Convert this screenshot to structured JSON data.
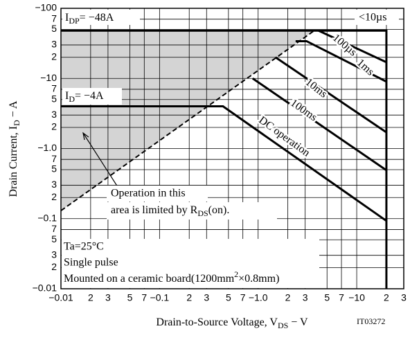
{
  "chart_data": {
    "type": "line",
    "x_scale": "log",
    "y_scale": "log",
    "grid": true,
    "color": "#000000",
    "shade_color": "#d4d4d4",
    "xlim": [
      0.01,
      30
    ],
    "ylim": [
      0.01,
      100
    ],
    "xticks": [
      {
        "value": 0.01,
        "label": "−0.01"
      },
      {
        "value": 0.02,
        "label": "2"
      },
      {
        "value": 0.03,
        "label": "3"
      },
      {
        "value": 0.05,
        "label": "5"
      },
      {
        "value": 0.07,
        "label": "7"
      },
      {
        "value": 0.1,
        "label": "−0.1"
      },
      {
        "value": 0.2,
        "label": "2"
      },
      {
        "value": 0.3,
        "label": "3"
      },
      {
        "value": 0.5,
        "label": "5"
      },
      {
        "value": 0.7,
        "label": "7"
      },
      {
        "value": 1,
        "label": "−1.0"
      },
      2,
      3,
      5,
      7,
      {
        "value": 10,
        "label": "−10"
      },
      {
        "value": 20,
        "label": "2"
      },
      {
        "value": 30,
        "label": "3"
      }
    ],
    "yticks": [
      {
        "value": 0.01,
        "label": "−0.01"
      },
      {
        "value": 0.02,
        "label": "2"
      },
      {
        "value": 0.03,
        "label": "3"
      },
      {
        "value": 0.05,
        "label": "5"
      },
      {
        "value": 0.07,
        "label": "7"
      },
      {
        "value": 0.1,
        "label": "−0.1"
      },
      {
        "value": 0.2,
        "label": "2"
      },
      {
        "value": 0.3,
        "label": "3"
      },
      {
        "value": 0.5,
        "label": "5"
      },
      {
        "value": 0.7,
        "label": "7"
      },
      {
        "value": 1,
        "label": "−1.0"
      },
      2,
      3,
      5,
      7,
      {
        "value": 10,
        "label": "−10"
      },
      {
        "value": 20,
        "label": "2"
      },
      {
        "value": 30,
        "label": "3"
      },
      {
        "value": 50,
        "label": "5"
      },
      {
        "value": 70,
        "label": "7"
      },
      {
        "value": 100,
        "label": "−100"
      }
    ],
    "x_label": {
      "text": "Drain-to-Source Voltage, V",
      "sub": "DS",
      "tail": " − V"
    },
    "y_label": {
      "text": "Drain Current, I",
      "sub": "D",
      "tail": " − A"
    },
    "series": [
      {
        "name": "<10µs",
        "x": [
          0.01,
          20,
          20
        ],
        "values": [
          48,
          48,
          0.01
        ]
      },
      {
        "name": "100µs",
        "x": [
          4.1,
          20
        ],
        "values": [
          48,
          17
        ]
      },
      {
        "name": "1ms",
        "x": [
          2.4,
          3.1,
          20
        ],
        "values": [
          34,
          34,
          9
        ]
      },
      {
        "name": "10ms",
        "x": [
          1.5,
          20
        ],
        "values": [
          20,
          1.7
        ]
      },
      {
        "name": "100ms",
        "x": [
          0.88,
          20
        ],
        "values": [
          10,
          0.49
        ]
      },
      {
        "name": "DC operation",
        "x": [
          0.01,
          0.44,
          20
        ],
        "values": [
          4,
          4,
          0.093
        ]
      },
      {
        "x": [
          0.01,
          3.7
        ],
        "values": [
          0.13,
          48
        ],
        "dashed": true
      }
    ],
    "annotations": {
      "idp": {
        "text": "I",
        "sub": "DP",
        "tail": "= −48A"
      },
      "id": {
        "text": "I",
        "sub": "D",
        "tail": "= −4A"
      },
      "operation": {
        "line1": "Operation in this",
        "text": "area is limited by R",
        "sub": "DS",
        "tail": "(on)."
      },
      "conditions": {
        "line1": "Ta=25°C",
        "line2": "Single pulse",
        "text": "Mounted on a ceramic board(1200mm",
        "sup": "2",
        "tail": "×0.8mm)"
      },
      "code": "IT03272"
    }
  }
}
